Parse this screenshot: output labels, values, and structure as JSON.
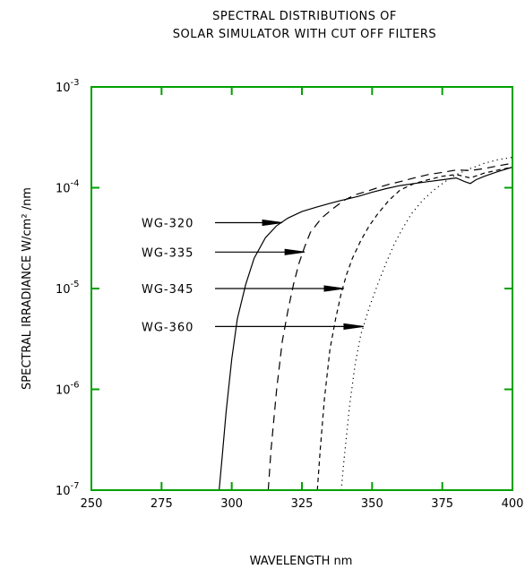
{
  "chart_data": {
    "type": "line",
    "title": [
      "SPECTRAL DISTRIBUTIONS OF",
      "SOLAR SIMULATOR WITH CUT OFF FILTERS"
    ],
    "xlabel": "WAVELENGTH nm",
    "ylabel": "SPECTRAL IRRADIANCE W/cm² /nm",
    "xlim": [
      250,
      400
    ],
    "ylim": [
      1e-07,
      0.001
    ],
    "y_scale": "log",
    "x_ticks": [
      "250",
      "275",
      "300",
      "325",
      "350",
      "375",
      "400"
    ],
    "y_ticks": [
      {
        "base": "10",
        "exp": "-7"
      },
      {
        "base": "10",
        "exp": "-6"
      },
      {
        "base": "10",
        "exp": "-5"
      },
      {
        "base": "10",
        "exp": "-4"
      },
      {
        "base": "10",
        "exp": "-3"
      }
    ],
    "frame_color": "#00a000",
    "line_color": "#000000",
    "grid": false,
    "series": [
      {
        "name": "WG-320",
        "style": "solid",
        "x": [
          295.5,
          296.5,
          298,
          300,
          302,
          305,
          308,
          312,
          316,
          320,
          325,
          330,
          335,
          340,
          345,
          350,
          355,
          360,
          365,
          370,
          375,
          380,
          383,
          385,
          387,
          390,
          395,
          400
        ],
        "y": [
          1e-07,
          2e-07,
          6e-07,
          2e-06,
          5e-06,
          1.1e-05,
          2e-05,
          3.2e-05,
          4.2e-05,
          5e-05,
          5.8e-05,
          6.4e-05,
          7e-05,
          7.6e-05,
          8.2e-05,
          9e-05,
          9.8e-05,
          0.000105,
          0.00011,
          0.000115,
          0.00012,
          0.000125,
          0.000115,
          0.00011,
          0.00012,
          0.00013,
          0.000145,
          0.00016
        ]
      },
      {
        "name": "WG-335",
        "style": "dashed",
        "x": [
          313,
          314,
          316,
          318,
          320,
          322,
          324,
          326,
          328,
          332,
          336,
          340,
          344,
          348,
          352,
          356,
          360,
          365,
          370,
          375,
          380,
          385,
          390,
          395,
          400
        ],
        "y": [
          1e-07,
          2.5e-07,
          1e-06,
          3e-06,
          6e-06,
          1.1e-05,
          1.8e-05,
          2.6e-05,
          3.6e-05,
          5e-05,
          6.2e-05,
          7.5e-05,
          8.5e-05,
          9.2e-05,
          0.0001,
          0.000108,
          0.000115,
          0.000125,
          0.000135,
          0.000142,
          0.00015,
          0.000148,
          0.000155,
          0.000165,
          0.000175
        ]
      },
      {
        "name": "WG-345",
        "style": "short-dashed",
        "x": [
          330.5,
          331.5,
          333,
          335,
          337,
          339,
          341,
          343,
          346,
          349,
          352,
          356,
          360,
          365,
          370,
          375,
          380,
          385,
          390,
          395,
          400
        ],
        "y": [
          1e-07,
          2.5e-07,
          8e-07,
          2.5e-06,
          5e-06,
          9e-06,
          1.4e-05,
          2e-05,
          3e-05,
          4.2e-05,
          5.5e-05,
          7.5e-05,
          9.5e-05,
          0.00011,
          0.00012,
          0.00013,
          0.000135,
          0.000125,
          0.00014,
          0.00015,
          0.00016
        ]
      },
      {
        "name": "WG-360",
        "style": "dotted",
        "x": [
          339,
          340,
          342,
          344,
          346,
          349,
          352,
          355,
          358,
          361,
          364,
          368,
          372,
          376,
          380,
          385,
          390,
          395,
          400
        ],
        "y": [
          1e-07,
          2e-07,
          7e-07,
          1.8e-06,
          3.5e-06,
          6.5e-06,
          1.1e-05,
          1.8e-05,
          2.8e-05,
          4e-05,
          5.5e-05,
          7.5e-05,
          9.5e-05,
          0.000115,
          0.000135,
          0.000155,
          0.000175,
          0.00019,
          0.0002
        ]
      }
    ],
    "annotations": [
      {
        "text": "WG-320",
        "x": 318,
        "y": 4.5e-05
      },
      {
        "text": "WG-335",
        "x": 326,
        "y": 2.3e-05
      },
      {
        "text": "WG-345",
        "x": 340,
        "y": 1e-05
      },
      {
        "text": "WG-360",
        "x": 347,
        "y": 4.2e-06
      }
    ]
  }
}
